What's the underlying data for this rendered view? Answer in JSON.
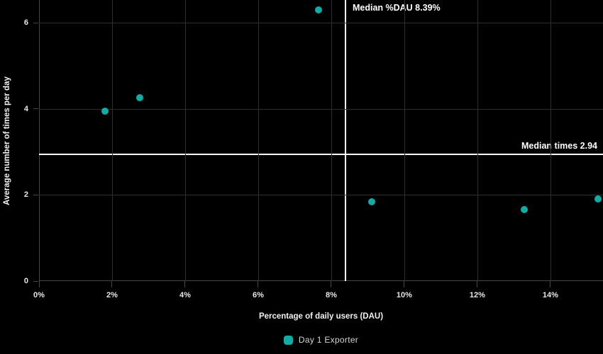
{
  "chart_data": {
    "type": "scatter",
    "xlabel": "Percentage of daily users (DAU)",
    "ylabel": "Average number of times per day",
    "xlim": [
      0,
      15.44
    ],
    "ylim": [
      0,
      6.53
    ],
    "grid": true,
    "legend_position": "bottom",
    "x_ticks": [
      {
        "value": 0,
        "label": "0%"
      },
      {
        "value": 2,
        "label": "2%"
      },
      {
        "value": 4,
        "label": "4%"
      },
      {
        "value": 6,
        "label": "6%"
      },
      {
        "value": 8,
        "label": "8%"
      },
      {
        "value": 10,
        "label": "10%"
      },
      {
        "value": 12,
        "label": "12%"
      },
      {
        "value": 14,
        "label": "14%"
      }
    ],
    "y_ticks": [
      {
        "value": 0,
        "label": "0"
      },
      {
        "value": 2,
        "label": "2"
      },
      {
        "value": 4,
        "label": "4"
      },
      {
        "value": 6,
        "label": "6"
      }
    ],
    "series": [
      {
        "name": "Day 1 Exporter",
        "color": "#12ACA6",
        "points": [
          {
            "x": 1.81,
            "y": 3.95
          },
          {
            "x": 2.76,
            "y": 4.26
          },
          {
            "x": 7.65,
            "y": 6.3
          },
          {
            "x": 9.11,
            "y": 1.85
          },
          {
            "x": 13.28,
            "y": 1.66
          },
          {
            "x": 15.3,
            "y": 1.9
          }
        ]
      }
    ],
    "reference_lines": {
      "x": {
        "value": 8.39,
        "label": "Median %DAU 8.39%"
      },
      "y": {
        "value": 2.94,
        "label": "Median times 2.94"
      }
    }
  },
  "colors": {
    "background": "#000000",
    "gridline": "#2F2F2F",
    "axis_line": "#474747",
    "tick_label": "#E8E8E8",
    "axis_title": "#F2F2F2",
    "reference_line": "#FFFFFF",
    "point": "#12ACA6",
    "legend_text": "#D6D6D6"
  }
}
